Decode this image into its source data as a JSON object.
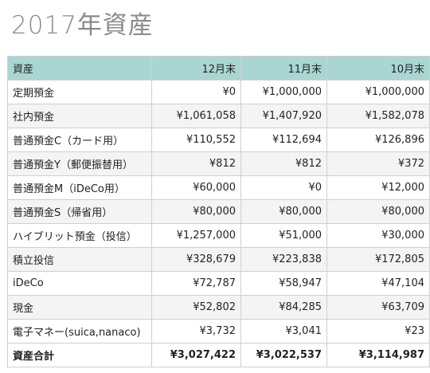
{
  "header": {
    "title": "2017年資産"
  },
  "table": {
    "columns": [
      "資産",
      "12月末",
      "11月末",
      "10月末"
    ],
    "rows": [
      [
        "定期預金",
        "¥0",
        "¥1,000,000",
        "¥1,000,000"
      ],
      [
        "社内預金",
        "¥1,061,058",
        "¥1,407,920",
        "¥1,582,078"
      ],
      [
        "普通預金C（カード用）",
        "¥110,552",
        "¥112,694",
        "¥126,896"
      ],
      [
        "普通預金Y（郵便振替用）",
        "¥812",
        "¥812",
        "¥372"
      ],
      [
        "普通預金M（iDeCo用）",
        "¥60,000",
        "¥0",
        "¥12,000"
      ],
      [
        "普通預金S（帰省用）",
        "¥80,000",
        "¥80,000",
        "¥80,000"
      ],
      [
        "ハイブリット預金（投信）",
        "¥1,257,000",
        "¥51,000",
        "¥30,000"
      ],
      [
        "積立投信",
        "¥328,679",
        "¥223,838",
        "¥172,805"
      ],
      [
        "iDeCo",
        "¥72,787",
        "¥58,947",
        "¥47,104"
      ],
      [
        "現金",
        "¥52,802",
        "¥84,285",
        "¥63,709"
      ],
      [
        "電子マネー(suica,nanaco)",
        "¥3,732",
        "¥3,041",
        "¥23"
      ]
    ],
    "total": [
      "資産合計",
      "¥3,027,422",
      "¥3,022,537",
      "¥3,114,987"
    ]
  }
}
